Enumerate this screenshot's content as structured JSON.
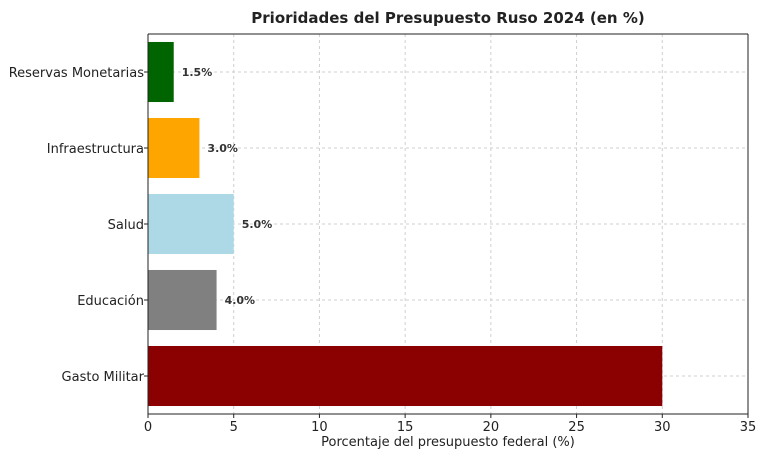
{
  "chart_data": {
    "type": "bar",
    "orientation": "horizontal",
    "title": "Prioridades del Presupuesto Ruso 2024 (en %)",
    "xlabel": "Porcentaje del presupuesto federal (%)",
    "ylabel": "",
    "xlim": [
      0,
      35
    ],
    "xticks": [
      0,
      5,
      10,
      15,
      20,
      25,
      30,
      35
    ],
    "grid": true,
    "categories": [
      "Gasto Militar",
      "Educación",
      "Salud",
      "Infraestructura",
      "Reservas Monetarias"
    ],
    "values": [
      30,
      4,
      5,
      3,
      1.5
    ],
    "data_labels": [
      "",
      "4.0%",
      "5.0%",
      "3.0%",
      "1.5%"
    ],
    "colors": [
      "#8b0000",
      "#808080",
      "#add8e6",
      "#ffa500",
      "#006400"
    ]
  }
}
